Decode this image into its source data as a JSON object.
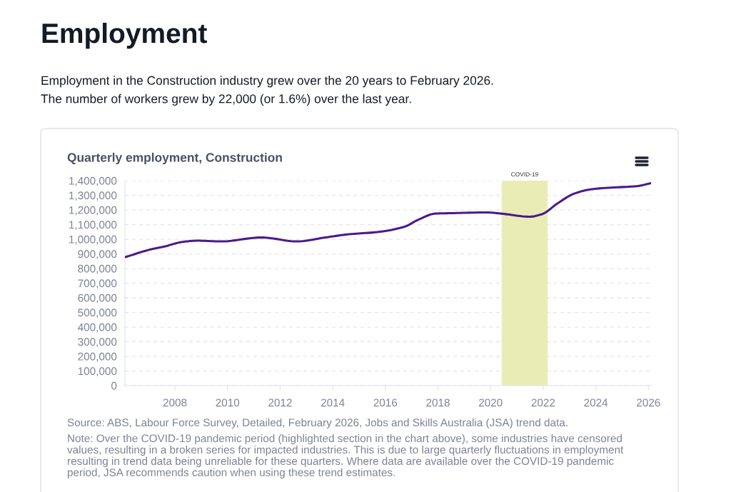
{
  "chart_data": {
    "type": "line",
    "title": "Quarterly employment, Construction",
    "annotations": [
      "Employment",
      "Employment in the Construction industry grew over the 20 years to February 2026.\nThe number of workers grew by 22,000 (or 1.6%) over the last year.",
      "Source: ABS, Labour Force Survey, Detailed, February 2026, Jobs and Skills Australia (JSA) trend data.",
      "Note: Over the COVID-19 pandemic period (highlighted section in the chart above), some industries have censored\nvalues, resulting in a broken series for impacted industries. This is due to large quarterly fluctuations in employment\nresulting in trend data being unreliable for these quarters. Where data are available over the COVID-19 pandemic\nperiod, JSA recommends caution when using these trend estimates."
    ],
    "x": [
      2006.1,
      2007.07,
      2007.6,
      2008.3,
      2008.86,
      2009.76,
      2011.29,
      2012.64,
      2013.72,
      2014.62,
      2015.7,
      2016.72,
      2017.26,
      2017.9,
      2018.51,
      2019.86,
      2020.4,
      2021.49,
      2021.95,
      2022.57,
      2023.2,
      2023.9,
      2025.27,
      2025.54,
      2026.08
    ],
    "series": [
      {
        "color": "#4b1a8c",
        "values": [
          877000,
          930000,
          950000,
          982000,
          990000,
          985000,
          1012000,
          985000,
          1012000,
          1034000,
          1049000,
          1085000,
          1134000,
          1175000,
          1178000,
          1183000,
          1175000,
          1154000,
          1171000,
          1248000,
          1313000,
          1343000,
          1359000,
          1362000,
          1382000
        ]
      }
    ],
    "xlim": [
      2006.1,
      2026.1
    ],
    "xticks": [
      2008,
      2010,
      2012,
      2014,
      2016,
      2018,
      2020,
      2022,
      2024,
      2026
    ],
    "ylim": [
      0,
      1400000
    ],
    "yticks": [
      0,
      {
        "value": 100000,
        "label": "100,000"
      },
      {
        "value": 200000,
        "label": "200,000"
      },
      {
        "value": 300000,
        "label": "300,000"
      },
      {
        "value": 400000,
        "label": "400,000"
      },
      {
        "value": 500000,
        "label": "500,000"
      },
      {
        "value": 600000,
        "label": "600,000"
      },
      {
        "value": 700000,
        "label": "700,000"
      },
      {
        "value": 800000,
        "label": "800,000"
      },
      {
        "value": 900000,
        "label": "900,000"
      },
      {
        "value": 1000000,
        "label": "1,000,000"
      },
      {
        "value": 1100000,
        "label": "1,100,000"
      },
      {
        "value": 1200000,
        "label": "1,200,000"
      },
      {
        "value": 1300000,
        "label": "1,300,000"
      },
      {
        "value": 1400000,
        "label": "1,400,000"
      }
    ],
    "bands": [
      {
        "axis": "x",
        "from": 2020.42,
        "to": 2022.17,
        "label": "COVID-19",
        "color": "#e9edb5"
      }
    ],
    "grid": "y",
    "marker": "none",
    "line_style": "solid"
  }
}
